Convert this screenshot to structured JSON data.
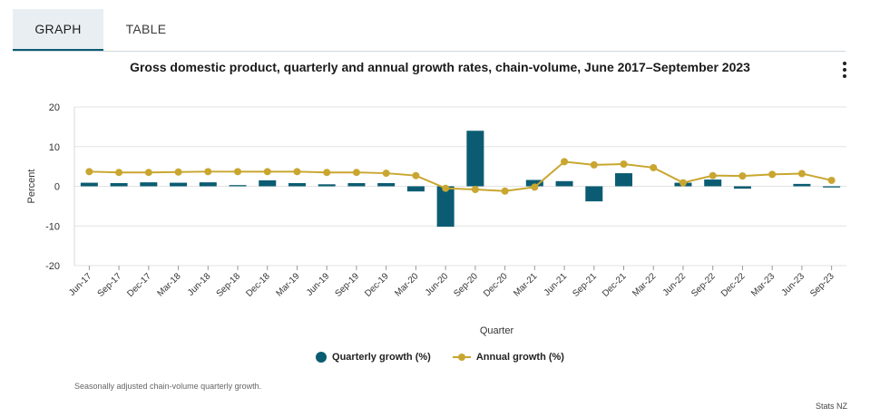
{
  "tabs": [
    {
      "label": "GRAPH",
      "active": true
    },
    {
      "label": "TABLE",
      "active": false
    }
  ],
  "menu_icon": "vertical-ellipsis-icon",
  "note": "Seasonally adjusted chain-volume quarterly growth.",
  "credit": "Stats NZ",
  "colors": {
    "quarterly": "#0b5c72",
    "annual": "#c9a630"
  },
  "chart_data": {
    "type": "bar",
    "title": "Gross domestic product, quarterly and annual growth rates, chain-volume, June 2017–September 2023",
    "xlabel": "Quarter",
    "ylabel": "Percent",
    "ylim": [
      -20,
      20
    ],
    "yticks": [
      20,
      10,
      0,
      -10,
      -20
    ],
    "grid": true,
    "legend_position": "bottom",
    "categories": [
      "Jun-17",
      "Sep-17",
      "Dec-17",
      "Mar-18",
      "Jun-18",
      "Sep-18",
      "Dec-18",
      "Mar-19",
      "Jun-19",
      "Sep-19",
      "Dec-19",
      "Mar-20",
      "Jun-20",
      "Sep-20",
      "Dec-20",
      "Mar-21",
      "Jun-21",
      "Sep-21",
      "Dec-21",
      "Mar-22",
      "Jun-22",
      "Sep-22",
      "Dec-22",
      "Mar-23",
      "Jun-23",
      "Sep-23"
    ],
    "series": [
      {
        "name": "Quarterly growth (%)",
        "type": "bar",
        "values": [
          0.9,
          0.8,
          1.0,
          0.9,
          1.0,
          0.3,
          1.5,
          0.8,
          0.5,
          0.8,
          0.8,
          -1.3,
          -10.2,
          14.0,
          0.0,
          1.6,
          1.3,
          -3.8,
          3.3,
          0.0,
          0.9,
          1.7,
          -0.6,
          0.0,
          0.6,
          -0.3
        ]
      },
      {
        "name": "Annual growth (%)",
        "type": "line",
        "values": [
          3.7,
          3.5,
          3.5,
          3.6,
          3.7,
          3.7,
          3.7,
          3.7,
          3.5,
          3.5,
          3.3,
          2.7,
          -0.5,
          -0.8,
          -1.2,
          -0.2,
          6.2,
          5.4,
          5.6,
          4.7,
          0.9,
          2.7,
          2.6,
          3.0,
          3.2,
          1.5
        ]
      }
    ]
  }
}
